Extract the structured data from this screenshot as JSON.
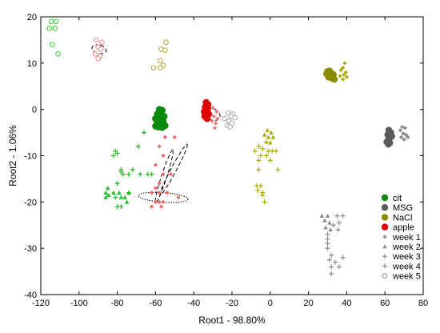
{
  "chart_data": {
    "type": "scatter",
    "title": "",
    "xlabel": "Root1 - 98.80%",
    "ylabel": "Root2 - 1.06%",
    "xlim": [
      -120,
      80
    ],
    "ylim": [
      -40,
      20
    ],
    "xticks": [
      -120,
      -100,
      -80,
      -60,
      -40,
      -20,
      0,
      20,
      40,
      60,
      80
    ],
    "yticks": [
      -40,
      -30,
      -20,
      -10,
      0,
      10,
      20
    ],
    "grid": false,
    "legend_position": "bottom-right",
    "legend": [
      {
        "label": "cit",
        "marker": "filled-circle",
        "color": "#0a8a0a"
      },
      {
        "label": "MSG",
        "marker": "filled-circle",
        "color": "#5a5a5a"
      },
      {
        "label": "NaCl",
        "marker": "filled-circle",
        "color": "#8b8b00"
      },
      {
        "label": "apple",
        "marker": "filled-circle",
        "color": "#e00000"
      },
      {
        "label": "week 1",
        "marker": "diamond",
        "color": "#8c8c8c"
      },
      {
        "label": "week 2",
        "marker": "triangle",
        "color": "#8c8c8c"
      },
      {
        "label": "week 3",
        "marker": "plus",
        "color": "#8c8c8c"
      },
      {
        "label": "week 4",
        "marker": "plus",
        "color": "#8c8c8c"
      },
      {
        "label": "week 5",
        "marker": "open-circle",
        "color": "#8c8c8c"
      }
    ],
    "series": [
      {
        "group": "cit-w5",
        "marker": "open-circle",
        "color": "#33cc33",
        "points": [
          [
            -114.5,
            19
          ],
          [
            -112,
            19
          ],
          [
            -115.5,
            17.5
          ],
          [
            -112.5,
            17.5
          ],
          [
            -114,
            14
          ],
          [
            -111,
            12
          ]
        ]
      },
      {
        "group": "apple-w5",
        "marker": "open-circle",
        "color": "#ee8888",
        "points": [
          [
            -91,
            15
          ],
          [
            -88,
            14.5
          ],
          [
            -90,
            13.5
          ],
          [
            -88.5,
            13
          ],
          [
            -91.5,
            12
          ],
          [
            -89,
            11.5
          ],
          [
            -90,
            11
          ]
        ]
      },
      {
        "group": "nacl-w5",
        "marker": "open-circle",
        "color": "#aaaa33",
        "points": [
          [
            -54.5,
            14.5
          ],
          [
            -57,
            13
          ],
          [
            -55,
            12.8
          ],
          [
            -57.5,
            10.5
          ],
          [
            -56,
            9.5
          ],
          [
            -61,
            9
          ],
          [
            -57.5,
            9
          ]
        ]
      },
      {
        "group": "msg-w5",
        "marker": "open-circle",
        "color": "#aaaaaa",
        "points": [
          [
            -22,
            -0.8
          ],
          [
            -19.5,
            -1
          ],
          [
            -20.5,
            -1.5
          ],
          [
            -18.5,
            -1.8
          ],
          [
            -24,
            -2
          ],
          [
            -21.5,
            -2.5
          ],
          [
            -20,
            -3
          ],
          [
            -22.5,
            -3.5
          ],
          [
            -21,
            -3.8
          ]
        ]
      },
      {
        "group": "nacl-w1",
        "marker": "filled-circle",
        "color": "#8b8b00",
        "points": [
          [
            30,
            8.2
          ],
          [
            31,
            8.3
          ],
          [
            32,
            7.8
          ],
          [
            29.5,
            7.7
          ],
          [
            31.5,
            7.2
          ],
          [
            33,
            7.5
          ],
          [
            32,
            6.8
          ],
          [
            30.5,
            7
          ],
          [
            33.5,
            6.5
          ],
          [
            32.5,
            6.9
          ]
        ]
      },
      {
        "group": "nacl-w2",
        "marker": "diamond",
        "color": "#aaaa00",
        "points": [
          [
            39,
            10
          ],
          [
            38,
            9
          ],
          [
            37,
            8.5
          ],
          [
            39.5,
            8
          ],
          [
            38.5,
            7.5
          ],
          [
            36.5,
            7.2
          ],
          [
            40,
            7
          ],
          [
            38,
            6.5
          ]
        ]
      },
      {
        "group": "cit-w1",
        "marker": "filled-circle",
        "color": "#0a8a0a",
        "points": [
          [
            -58,
            0
          ],
          [
            -56.5,
            -0.2
          ],
          [
            -59,
            -1
          ],
          [
            -57,
            -1.3
          ],
          [
            -55.5,
            -1.5
          ],
          [
            -60,
            -2
          ],
          [
            -58,
            -2.2
          ],
          [
            -56,
            -2.5
          ],
          [
            -59,
            -3
          ],
          [
            -57.5,
            -3.3
          ],
          [
            -55,
            -3.5
          ],
          [
            -58.5,
            -3.8
          ],
          [
            -60,
            -3.6
          ],
          [
            -56.5,
            -3.9
          ]
        ]
      },
      {
        "group": "apple-w1",
        "marker": "filled-circle",
        "color": "#e00000",
        "points": [
          [
            -33.5,
            1.5
          ],
          [
            -32.5,
            1
          ],
          [
            -34,
            0.5
          ],
          [
            -32.8,
            0
          ],
          [
            -34.5,
            -0.5
          ],
          [
            -33.5,
            -1
          ],
          [
            -32.2,
            -1
          ],
          [
            -34.2,
            -1.5
          ],
          [
            -33,
            -2
          ]
        ]
      },
      {
        "group": "apple-w2",
        "marker": "diamond",
        "color": "#ee7777",
        "points": [
          [
            -30,
            0.3
          ],
          [
            -28,
            -0.5
          ],
          [
            -29.5,
            -1.5
          ],
          [
            -27.5,
            -2
          ],
          [
            -30.5,
            -2.5
          ],
          [
            -28.5,
            -3
          ],
          [
            -29,
            -4
          ]
        ]
      },
      {
        "group": "msg-w1",
        "marker": "filled-circle",
        "color": "#5a5a5a",
        "points": [
          [
            62,
            -4.5
          ],
          [
            63,
            -5
          ],
          [
            61.5,
            -5.5
          ],
          [
            63.5,
            -5.8
          ],
          [
            62,
            -6.5
          ],
          [
            61,
            -7
          ],
          [
            62.5,
            -7.2
          ],
          [
            61.8,
            -7.5
          ]
        ]
      },
      {
        "group": "msg-w2",
        "marker": "diamond",
        "color": "#8a8a8a",
        "points": [
          [
            69,
            -3.8
          ],
          [
            70.5,
            -4
          ],
          [
            68,
            -4.5
          ],
          [
            69.5,
            -5.2
          ],
          [
            71,
            -5.5
          ],
          [
            68.5,
            -6
          ],
          [
            70,
            -6.5
          ],
          [
            72,
            -6
          ]
        ]
      },
      {
        "group": "nacl-w3",
        "marker": "triangle",
        "color": "#aaaa00",
        "points": [
          [
            -1.5,
            -4.5
          ],
          [
            0.5,
            -5
          ],
          [
            -3,
            -5.5
          ],
          [
            -1,
            -6
          ],
          [
            1.5,
            -6
          ],
          [
            -2,
            -7
          ],
          [
            0,
            -7.2
          ]
        ]
      },
      {
        "group": "nacl-w4",
        "marker": "plus",
        "color": "#aaaa00",
        "points": [
          [
            -6,
            -8
          ],
          [
            -4,
            -8.5
          ],
          [
            -8,
            -9
          ],
          [
            -1,
            -9
          ],
          [
            1,
            -9
          ],
          [
            3,
            -9
          ],
          [
            -5,
            -10
          ],
          [
            -2,
            -10
          ],
          [
            0,
            -11
          ],
          [
            -6,
            -11
          ],
          [
            -6,
            -13
          ],
          [
            4,
            -13
          ],
          [
            -7,
            -16.5
          ],
          [
            -5,
            -16.5
          ],
          [
            -6.5,
            -17.5
          ],
          [
            -4,
            -18
          ],
          [
            -4,
            -18.5
          ],
          [
            -3,
            -20
          ]
        ]
      },
      {
        "group": "msg-w3",
        "marker": "triangle",
        "color": "#8a8a8a",
        "points": [
          [
            27,
            -23
          ],
          [
            30,
            -23
          ],
          [
            28.5,
            -24
          ],
          [
            31,
            -24.5
          ],
          [
            29,
            -25.5
          ],
          [
            31.5,
            -26
          ]
        ]
      },
      {
        "group": "msg-w4",
        "marker": "plus",
        "color": "#8a8a8a",
        "points": [
          [
            35,
            -23
          ],
          [
            38,
            -23
          ],
          [
            36,
            -24.5
          ],
          [
            33,
            -25
          ],
          [
            35.5,
            -26
          ],
          [
            30,
            -27
          ],
          [
            30,
            -28
          ],
          [
            30,
            -29
          ],
          [
            30,
            -30
          ],
          [
            32,
            -31.5
          ],
          [
            38,
            -32
          ],
          [
            31,
            -32.5
          ],
          [
            34,
            -33
          ],
          [
            36,
            -34
          ],
          [
            32,
            -34
          ],
          [
            32,
            -35.5
          ]
        ]
      },
      {
        "group": "cit-w3",
        "marker": "triangle",
        "color": "#22bb22",
        "points": [
          [
            -85,
            -17
          ],
          [
            -86,
            -18
          ],
          [
            -84.5,
            -18.5
          ],
          [
            -82,
            -18
          ],
          [
            -79,
            -18
          ],
          [
            -74,
            -18
          ],
          [
            -86,
            -19
          ],
          [
            -78,
            -19
          ],
          [
            -76,
            -19
          ],
          [
            -75,
            -20
          ]
        ]
      },
      {
        "group": "cit-w4",
        "marker": "plus",
        "color": "#22bb22",
        "points": [
          [
            -66,
            -5
          ],
          [
            -69,
            -8
          ],
          [
            -81,
            -9
          ],
          [
            -80,
            -9.5
          ],
          [
            -82,
            -10
          ],
          [
            -78,
            -13
          ],
          [
            -78,
            -13.5
          ],
          [
            -77,
            -14
          ],
          [
            -74,
            -14
          ],
          [
            -72,
            -13
          ],
          [
            -68,
            -14
          ],
          [
            -64,
            -14
          ],
          [
            -62,
            -14
          ],
          [
            -80,
            -16
          ],
          [
            -81,
            -19
          ],
          [
            -80,
            -21
          ],
          [
            -78,
            -21
          ],
          [
            -74,
            -18
          ]
        ]
      },
      {
        "group": "apple-w3",
        "marker": "diamond",
        "color": "#ee6666",
        "points": [
          [
            -55,
            -6
          ],
          [
            -50,
            -6
          ],
          [
            -58,
            -8
          ],
          [
            -56,
            -10
          ],
          [
            -60,
            -12
          ],
          [
            -56,
            -14
          ],
          [
            -52,
            -14
          ],
          [
            -58,
            -16
          ],
          [
            -60,
            -17
          ],
          [
            -62,
            -18
          ],
          [
            -58,
            -18
          ],
          [
            -54,
            -18
          ],
          [
            -48,
            -19
          ],
          [
            -60,
            -20
          ],
          [
            -58,
            -20
          ],
          [
            -56,
            -20
          ],
          [
            -62,
            -21
          ],
          [
            -57,
            -21
          ]
        ]
      }
    ],
    "ellipses": [
      {
        "center": [
          -89.5,
          13
        ],
        "rx": 2.2,
        "ry": 3.8,
        "angle": -75,
        "style": "dashed"
      },
      {
        "center": [
          -30.5,
          -1
        ],
        "rx": 3,
        "ry": 4.5,
        "angle": -65,
        "style": "dashed"
      },
      {
        "center": [
          -50.5,
          -13
        ],
        "rx": 15,
        "ry": 1.4,
        "angle": -62,
        "style": "dashed"
      },
      {
        "center": [
          -55.5,
          -14.5
        ],
        "rx": 14.5,
        "ry": 1.4,
        "angle": -72,
        "style": "dashed"
      },
      {
        "center": [
          -56,
          -19
        ],
        "rx": 13,
        "ry": 2.5,
        "angle": 4,
        "style": "dotted"
      }
    ]
  }
}
